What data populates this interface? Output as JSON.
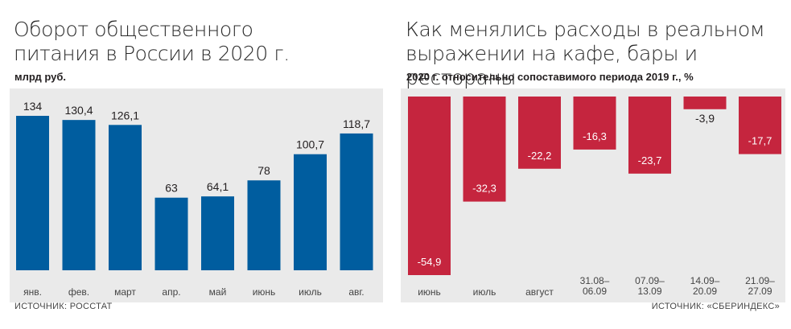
{
  "left": {
    "title_line1": "Оборот общественного",
    "title_line2": "питания в России в 2020 г.",
    "subtitle": "млрд руб.",
    "source": "ИСТОЧНИК: РОССТАТ"
  },
  "right": {
    "title_line1": "Как менялись расходы в реальном",
    "title_line2": "выражении на кафе, бары и рестораны",
    "subtitle": "2020 г. относительно сопоставимого периода 2019 г., %",
    "source": "ИСТОЧНИК: «СБЕРИНДЕКС»"
  },
  "colors": {
    "blue": "#005d9f",
    "red": "#c5253e",
    "panel": "#eaeaea"
  },
  "chart_data": [
    {
      "type": "bar",
      "categories": [
        "янв.",
        "фев.",
        "март",
        "апр.",
        "май",
        "июнь",
        "июль",
        "авг."
      ],
      "values": [
        134,
        130.4,
        126.1,
        63,
        64.1,
        78,
        100.7,
        118.7
      ],
      "labels": [
        "134",
        "130,4",
        "126,1",
        "63",
        "64,1",
        "78",
        "100,7",
        "118,7"
      ],
      "title": "Оборот общественного питания в России в 2020 г.",
      "ylabel": "млрд руб.",
      "ylim": [
        0,
        134
      ]
    },
    {
      "type": "bar",
      "categories": [
        "июнь",
        "июль",
        "август",
        "31.08–\n06.09",
        "07.09–\n13.09",
        "14.09–\n20.09",
        "21.09–\n27.09"
      ],
      "values": [
        -54.9,
        -32.3,
        -22.2,
        -16.3,
        -23.7,
        -3.9,
        -17.7
      ],
      "labels": [
        "-54,9",
        "-32,3",
        "-22,2",
        "-16,3",
        "-23,7",
        "-3,9",
        "-17,7"
      ],
      "title": "Как менялись расходы в реальном выражении на кафе, бары и рестораны",
      "subtitle": "2020 г. относительно сопоставимого периода 2019 г., %",
      "ylim": [
        -54.9,
        0
      ]
    }
  ]
}
